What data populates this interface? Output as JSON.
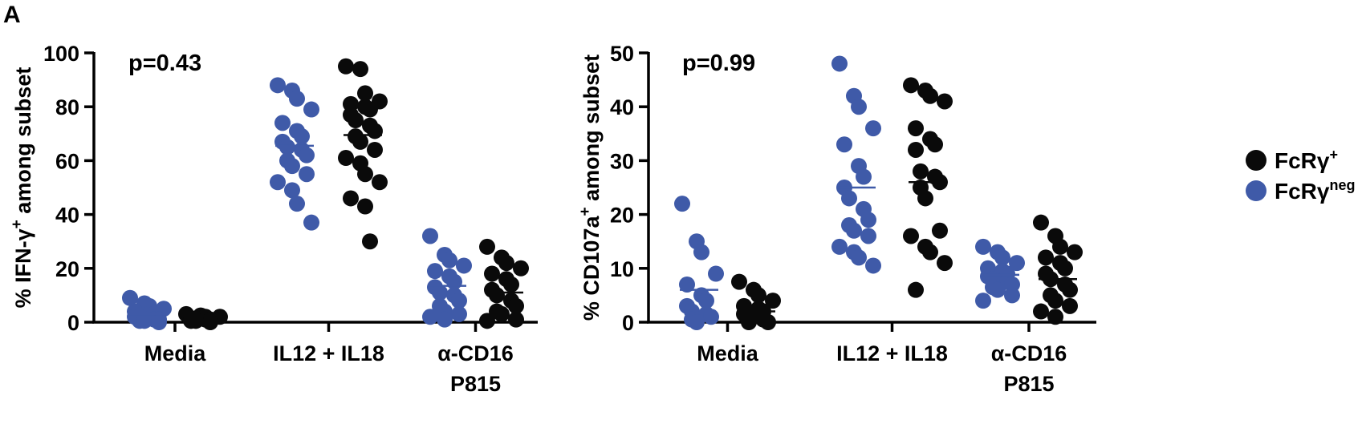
{
  "panel_label": "A",
  "legend": [
    {
      "name": "FcRγ",
      "sup": "+",
      "color": "#0a0a0a"
    },
    {
      "name": "FcRγ",
      "sup": "neg",
      "color": "#3f5aa8"
    }
  ],
  "chart_data": [
    {
      "type": "scatter",
      "title": "",
      "annotation": "p=0.43",
      "ylabel": "% IFN-γ",
      "ylabel_sup": "+",
      "ylabel_suffix": " among subset",
      "ylim": [
        0,
        100
      ],
      "yticks": [
        0,
        20,
        40,
        60,
        80,
        100
      ],
      "categories": [
        [
          "Media"
        ],
        [
          "IL12 + IL18"
        ],
        [
          "α-CD16",
          "P815"
        ]
      ],
      "series": [
        {
          "name": "FcRγneg",
          "color": "#3f5aa8",
          "means": [
            3,
            65.5,
            13.5
          ],
          "values": [
            [
              9,
              7,
              6,
              5,
              4,
              3,
              3,
              2,
              2,
              1,
              1,
              0.5,
              0.5,
              0
            ],
            [
              88,
              86,
              83,
              79,
              74,
              71,
              69,
              67,
              65,
              64,
              62,
              60,
              58,
              55,
              52,
              49,
              44,
              37
            ],
            [
              32,
              25,
              23,
              21,
              19,
              17,
              15,
              13,
              11,
              10,
              8,
              6,
              4,
              3,
              2,
              1
            ]
          ]
        },
        {
          "name": "FcRγ+",
          "color": "#0a0a0a",
          "means": [
            1,
            69.5,
            11
          ],
          "values": [
            [
              3,
              2.5,
              2,
              2,
              1.5,
              1,
              1,
              0.5,
              0.5,
              0
            ],
            [
              95,
              94,
              85,
              82,
              81,
              80,
              79,
              77,
              75,
              73,
              71,
              69,
              67,
              64,
              61,
              59,
              55,
              52,
              46,
              43,
              30
            ],
            [
              28,
              24,
              22,
              20,
              18,
              16,
              14,
              12,
              10,
              8,
              6,
              4,
              3,
              1,
              0.5
            ]
          ]
        }
      ]
    },
    {
      "type": "scatter",
      "title": "",
      "annotation": "p=0.99",
      "ylabel": "% CD107a",
      "ylabel_sup": "+",
      "ylabel_suffix": " among subset",
      "ylim": [
        0,
        50
      ],
      "yticks": [
        0,
        10,
        20,
        30,
        40,
        50
      ],
      "categories": [
        [
          "Media"
        ],
        [
          "IL12 + IL18"
        ],
        [
          "α-CD16",
          "P815"
        ]
      ],
      "series": [
        {
          "name": "FcRγneg",
          "color": "#3f5aa8",
          "means": [
            6,
            25,
            8.8
          ],
          "values": [
            [
              22,
              15,
              13,
              9,
              7,
              5,
              4,
              3,
              2,
              1.5,
              1,
              0.5,
              0
            ],
            [
              48,
              42,
              40,
              36,
              33,
              29,
              27,
              25,
              23,
              21,
              19,
              18,
              17,
              16,
              14,
              13,
              12,
              10.5
            ],
            [
              14,
              13,
              12,
              11,
              10,
              9.5,
              9,
              8.5,
              8,
              7.5,
              7,
              6.5,
              6,
              5,
              4
            ]
          ]
        },
        {
          "name": "FcRγ+",
          "color": "#0a0a0a",
          "means": [
            2,
            26,
            8
          ],
          "values": [
            [
              7.5,
              6,
              5,
              4,
              3,
              2.5,
              2,
              1.5,
              1,
              0.5,
              0,
              0
            ],
            [
              44,
              43,
              42,
              41,
              36,
              34,
              33,
              32,
              28,
              27,
              26,
              25,
              23,
              17,
              16,
              14,
              13,
              11,
              6
            ],
            [
              18.5,
              16,
              14,
              13,
              12,
              11,
              10,
              9,
              8,
              7,
              6,
              5,
              4,
              3,
              2,
              1
            ]
          ]
        }
      ]
    }
  ]
}
